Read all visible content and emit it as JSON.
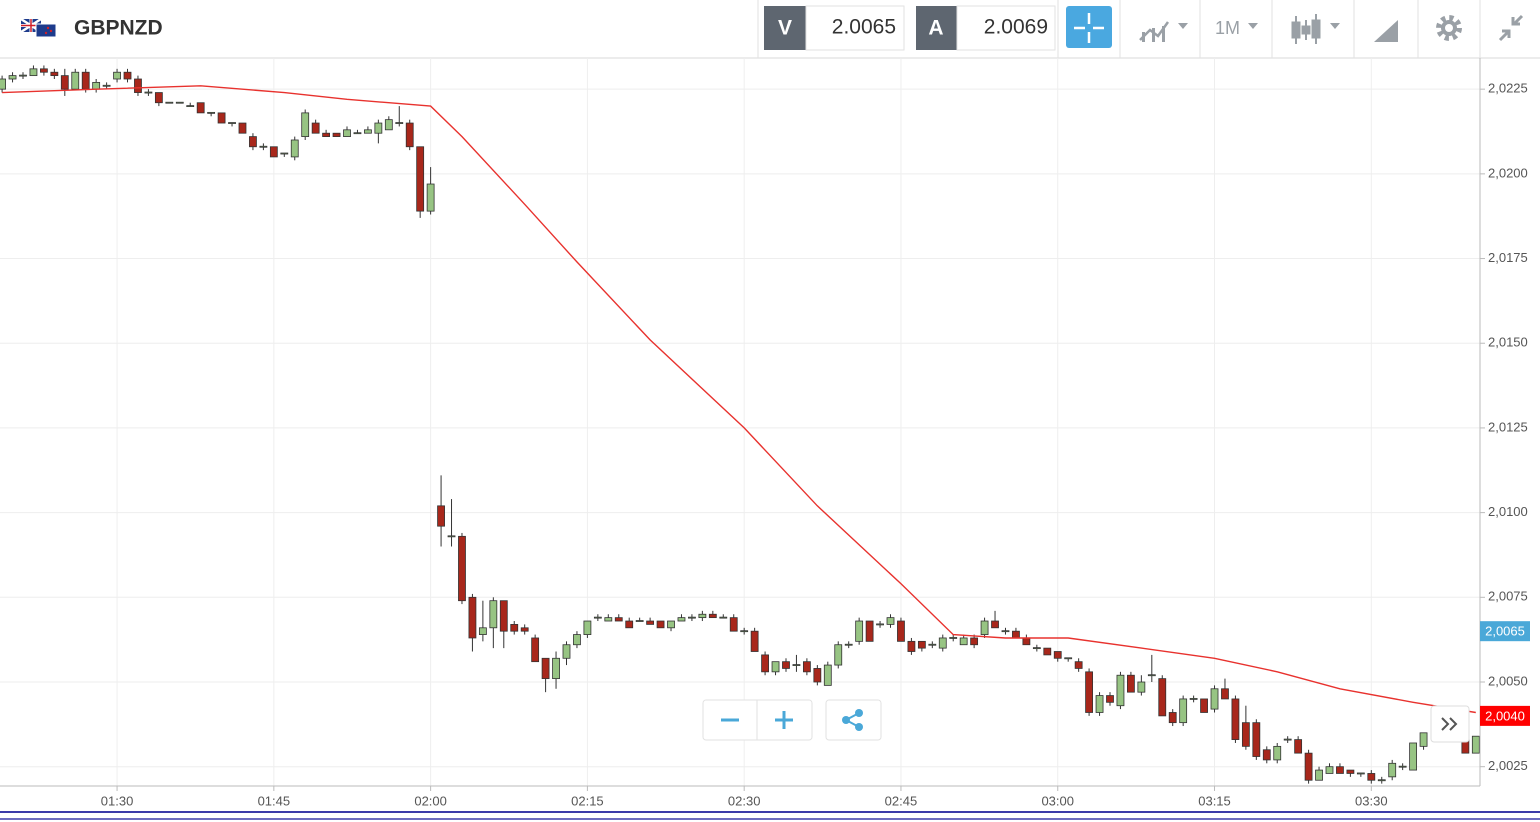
{
  "header": {
    "symbol": "GBPNZD",
    "bid_label": "V",
    "bid": "2.0065",
    "ask_label": "A",
    "ask": "2.0069",
    "interval": "1M"
  },
  "chart_data": {
    "type": "candlestick",
    "up_color": "#97c483",
    "down_color": "#a8271b",
    "ma_color": "#e8322e",
    "grid": true,
    "xlim": [
      78.8,
      220.4
    ],
    "ylim": [
      2.00193,
      2.02342
    ],
    "xticks": [
      {
        "value": 90,
        "label": "01:30"
      },
      {
        "value": 105,
        "label": "01:45"
      },
      {
        "value": 120,
        "label": "02:00"
      },
      {
        "value": 135,
        "label": "02:15"
      },
      {
        "value": 150,
        "label": "02:30"
      },
      {
        "value": 165,
        "label": "02:45"
      },
      {
        "value": 180,
        "label": "03:00"
      },
      {
        "value": 195,
        "label": "03:15"
      },
      {
        "value": 210,
        "label": "03:30"
      }
    ],
    "yticks": [
      {
        "value": 2.0225,
        "label": "2,0225"
      },
      {
        "value": 2.02,
        "label": "2,0200"
      },
      {
        "value": 2.0175,
        "label": "2,0175"
      },
      {
        "value": 2.015,
        "label": "2,0150"
      },
      {
        "value": 2.0125,
        "label": "2,0125"
      },
      {
        "value": 2.01,
        "label": "2,0100"
      },
      {
        "value": 2.0075,
        "label": "2,0075"
      },
      {
        "value": 2.005,
        "label": "2,0050"
      },
      {
        "value": 2.0025,
        "label": "2,0025"
      }
    ],
    "x": [
      79,
      80,
      81,
      82,
      83,
      84,
      85,
      86,
      87,
      88,
      89,
      90,
      91,
      92,
      93,
      94,
      95,
      96,
      97,
      98,
      99,
      100,
      101,
      102,
      103,
      104,
      105,
      106,
      107,
      108,
      109,
      110,
      111,
      112,
      113,
      114,
      115,
      116,
      117,
      118,
      119,
      120,
      121,
      122,
      123,
      124,
      125,
      126,
      127,
      128,
      129,
      130,
      131,
      132,
      133,
      134,
      135,
      136,
      137,
      138,
      139,
      140,
      141,
      142,
      143,
      144,
      145,
      146,
      147,
      148,
      149,
      150,
      151,
      152,
      153,
      154,
      155,
      156,
      157,
      158,
      159,
      160,
      161,
      162,
      163,
      164,
      165,
      166,
      167,
      168,
      169,
      170,
      171,
      172,
      173,
      174,
      175,
      176,
      177,
      178,
      179,
      180,
      181,
      182,
      183,
      184,
      185,
      186,
      187,
      188,
      189,
      190,
      191,
      192,
      193,
      194,
      195,
      196,
      197,
      198,
      199,
      200,
      201,
      202,
      203,
      204,
      205,
      206,
      207,
      208,
      209,
      210,
      211,
      212,
      213,
      214,
      215,
      219,
      220
    ],
    "ohlc": [
      [
        2.0225,
        2.0229,
        2.0224,
        2.0228
      ],
      [
        2.0228,
        2.023,
        2.0227,
        2.0229
      ],
      [
        2.0229,
        2.023,
        2.0228,
        2.0229
      ],
      [
        2.0229,
        2.0232,
        2.0229,
        2.0231
      ],
      [
        2.0231,
        2.0232,
        2.0229,
        2.023
      ],
      [
        2.023,
        2.0231,
        2.0228,
        2.0229
      ],
      [
        2.0229,
        2.0231,
        2.0223,
        2.0225
      ],
      [
        2.0225,
        2.0231,
        2.0225,
        2.023
      ],
      [
        2.023,
        2.0231,
        2.0224,
        2.0225
      ],
      [
        2.0225,
        2.0228,
        2.0224,
        2.0227
      ],
      [
        2.0226,
        2.0227,
        2.0225,
        2.0226
      ],
      [
        2.0228,
        2.0231,
        2.0227,
        2.023
      ],
      [
        2.023,
        2.0231,
        2.0227,
        2.0228
      ],
      [
        2.0228,
        2.0229,
        2.0223,
        2.0224
      ],
      [
        2.0224,
        2.0225,
        2.0223,
        2.0224
      ],
      [
        2.0224,
        2.0224,
        2.022,
        2.0221
      ],
      [
        2.0221,
        2.0221,
        2.0221,
        2.0221
      ],
      [
        2.0221,
        2.0221,
        2.0221,
        2.0221
      ],
      [
        2.022,
        2.0221,
        2.022,
        2.022
      ],
      [
        2.0221,
        2.0221,
        2.0218,
        2.0218
      ],
      [
        2.0218,
        2.0218,
        2.0217,
        2.0218
      ],
      [
        2.0218,
        2.0218,
        2.0215,
        2.0215
      ],
      [
        2.0215,
        2.0215,
        2.0214,
        2.0215
      ],
      [
        2.0215,
        2.0215,
        2.0212,
        2.0212
      ],
      [
        2.0211,
        2.0212,
        2.0207,
        2.0208
      ],
      [
        2.0208,
        2.0209,
        2.0207,
        2.0208
      ],
      [
        2.0208,
        2.0208,
        2.0205,
        2.0205
      ],
      [
        2.0206,
        2.0206,
        2.0205,
        2.0206
      ],
      [
        2.0205,
        2.0211,
        2.0204,
        2.021
      ],
      [
        2.0211,
        2.0219,
        2.021,
        2.0218
      ],
      [
        2.0215,
        2.0216,
        2.0212,
        2.0212
      ],
      [
        2.0212,
        2.0213,
        2.0211,
        2.0211
      ],
      [
        2.0212,
        2.0212,
        2.0211,
        2.0211
      ],
      [
        2.0211,
        2.0214,
        2.0211,
        2.0213
      ],
      [
        2.0212,
        2.0213,
        2.0212,
        2.0212
      ],
      [
        2.0212,
        2.0214,
        2.0212,
        2.0213
      ],
      [
        2.0212,
        2.0216,
        2.0209,
        2.0215
      ],
      [
        2.0213,
        2.0217,
        2.0213,
        2.0216
      ],
      [
        2.0215,
        2.022,
        2.0214,
        2.0215
      ],
      [
        2.0215,
        2.0216,
        2.0207,
        2.0208
      ],
      [
        2.0208,
        2.0208,
        2.0187,
        2.0189
      ],
      [
        2.0189,
        2.0202,
        2.0188,
        2.0197
      ],
      [
        2.0102,
        2.0111,
        2.009,
        2.0096
      ],
      [
        2.0093,
        2.0104,
        2.009,
        2.0093
      ],
      [
        2.0093,
        2.0094,
        2.0073,
        2.0074
      ],
      [
        2.0075,
        2.0076,
        2.0059,
        2.0063
      ],
      [
        2.0064,
        2.0074,
        2.0062,
        2.0066
      ],
      [
        2.0066,
        2.0075,
        2.006,
        2.0074
      ],
      [
        2.0074,
        2.0074,
        2.006,
        2.0065
      ],
      [
        2.0067,
        2.0068,
        2.0064,
        2.0065
      ],
      [
        2.0066,
        2.0067,
        2.0064,
        2.0065
      ],
      [
        2.0063,
        2.0064,
        2.0056,
        2.0056
      ],
      [
        2.0057,
        2.0057,
        2.0047,
        2.0051
      ],
      [
        2.0051,
        2.0059,
        2.0048,
        2.0057
      ],
      [
        2.0057,
        2.0062,
        2.0055,
        2.0061
      ],
      [
        2.0061,
        2.0065,
        2.006,
        2.0064
      ],
      [
        2.0064,
        2.0068,
        2.0063,
        2.0068
      ],
      [
        2.0069,
        2.007,
        2.0068,
        2.0069
      ],
      [
        2.0068,
        2.007,
        2.0068,
        2.0069
      ],
      [
        2.0069,
        2.007,
        2.0068,
        2.0068
      ],
      [
        2.0068,
        2.0069,
        2.0066,
        2.0066
      ],
      [
        2.0068,
        2.0069,
        2.0068,
        2.0068
      ],
      [
        2.0068,
        2.0069,
        2.0067,
        2.0067
      ],
      [
        2.0068,
        2.0068,
        2.0066,
        2.0066
      ],
      [
        2.0066,
        2.0068,
        2.0065,
        2.0068
      ],
      [
        2.0068,
        2.007,
        2.0068,
        2.0069
      ],
      [
        2.0069,
        2.007,
        2.0068,
        2.0069
      ],
      [
        2.0069,
        2.0071,
        2.0068,
        2.007
      ],
      [
        2.007,
        2.0071,
        2.0069,
        2.0069
      ],
      [
        2.0069,
        2.007,
        2.0069,
        2.0069
      ],
      [
        2.0069,
        2.007,
        2.0065,
        2.0065
      ],
      [
        2.0065,
        2.0066,
        2.0064,
        2.0065
      ],
      [
        2.0065,
        2.0066,
        2.0059,
        2.0059
      ],
      [
        2.0058,
        2.0059,
        2.0052,
        2.0053
      ],
      [
        2.0053,
        2.0056,
        2.0052,
        2.0056
      ],
      [
        2.0056,
        2.0057,
        2.0053,
        2.0054
      ],
      [
        2.0055,
        2.0058,
        2.0053,
        2.0055
      ],
      [
        2.0056,
        2.0057,
        2.0052,
        2.0053
      ],
      [
        2.0054,
        2.0055,
        2.0049,
        2.005
      ],
      [
        2.0049,
        2.0056,
        2.0049,
        2.0055
      ],
      [
        2.0055,
        2.0062,
        2.0054,
        2.0061
      ],
      [
        2.0061,
        2.0062,
        2.006,
        2.0061
      ],
      [
        2.0062,
        2.0069,
        2.0061,
        2.0068
      ],
      [
        2.0068,
        2.0068,
        2.0062,
        2.0062
      ],
      [
        2.0067,
        2.0068,
        2.0066,
        2.0067
      ],
      [
        2.0067,
        2.007,
        2.0066,
        2.0069
      ],
      [
        2.0068,
        2.0069,
        2.0062,
        2.0062
      ],
      [
        2.0062,
        2.0063,
        2.0058,
        2.0059
      ],
      [
        2.0062,
        2.0062,
        2.0059,
        2.006
      ],
      [
        2.0061,
        2.0062,
        2.006,
        2.0061
      ],
      [
        2.006,
        2.0064,
        2.0059,
        2.0063
      ],
      [
        2.0063,
        2.0064,
        2.0062,
        2.0063
      ],
      [
        2.0061,
        2.0064,
        2.0061,
        2.0063
      ],
      [
        2.0063,
        2.0064,
        2.006,
        2.0061
      ],
      [
        2.0064,
        2.0069,
        2.0063,
        2.0068
      ],
      [
        2.0068,
        2.0071,
        2.0066,
        2.0066
      ],
      [
        2.0065,
        2.0066,
        2.0064,
        2.0065
      ],
      [
        2.0065,
        2.0066,
        2.0063,
        2.0063
      ],
      [
        2.0063,
        2.0064,
        2.0061,
        2.0061
      ],
      [
        2.006,
        2.0061,
        2.0059,
        2.006
      ],
      [
        2.006,
        2.006,
        2.0058,
        2.0058
      ],
      [
        2.0059,
        2.0059,
        2.0056,
        2.0057
      ],
      [
        2.0057,
        2.0057,
        2.0056,
        2.0057
      ],
      [
        2.0056,
        2.0057,
        2.0053,
        2.0054
      ],
      [
        2.0053,
        2.0054,
        2.004,
        2.0041
      ],
      [
        2.0041,
        2.0047,
        2.004,
        2.0046
      ],
      [
        2.0046,
        2.0047,
        2.0043,
        2.0044
      ],
      [
        2.0043,
        2.0053,
        2.0042,
        2.0052
      ],
      [
        2.0052,
        2.0053,
        2.0047,
        2.0047
      ],
      [
        2.0047,
        2.0052,
        2.0046,
        2.005
      ],
      [
        2.0052,
        2.0058,
        2.005,
        2.0052
      ],
      [
        2.0051,
        2.0052,
        2.004,
        2.004
      ],
      [
        2.0041,
        2.0042,
        2.0037,
        2.0038
      ],
      [
        2.0038,
        2.0046,
        2.0037,
        2.0045
      ],
      [
        2.0045,
        2.0046,
        2.0044,
        2.0045
      ],
      [
        2.0045,
        2.0045,
        2.0041,
        2.0041
      ],
      [
        2.0042,
        2.0049,
        2.0041,
        2.0048
      ],
      [
        2.0048,
        2.0051,
        2.0045,
        2.0045
      ],
      [
        2.0045,
        2.0046,
        2.0032,
        2.0033
      ],
      [
        2.0038,
        2.0043,
        2.003,
        2.0031
      ],
      [
        2.0038,
        2.0039,
        2.0027,
        2.0028
      ],
      [
        2.003,
        2.0031,
        2.0026,
        2.0027
      ],
      [
        2.0027,
        2.0032,
        2.0026,
        2.0031
      ],
      [
        2.0033,
        2.0034,
        2.0032,
        2.0033
      ],
      [
        2.0033,
        2.0034,
        2.0029,
        2.0029
      ],
      [
        2.0029,
        2.003,
        2.002,
        2.0021
      ],
      [
        2.0021,
        2.0025,
        2.0021,
        2.0024
      ],
      [
        2.0023,
        2.0026,
        2.0023,
        2.0025
      ],
      [
        2.0025,
        2.0026,
        2.0023,
        2.0023
      ],
      [
        2.0024,
        2.0024,
        2.0022,
        2.0023
      ],
      [
        2.0023,
        2.0023,
        2.0022,
        2.0023
      ],
      [
        2.0023,
        2.0024,
        2.002,
        2.0021
      ],
      [
        2.0021,
        2.0022,
        2.002,
        2.0021
      ],
      [
        2.0022,
        2.0027,
        2.0021,
        2.0026
      ],
      [
        2.0025,
        2.0026,
        2.0024,
        2.0025
      ],
      [
        2.0024,
        2.0032,
        2.0024,
        2.0032
      ],
      [
        2.0031,
        2.0035,
        2.003,
        2.0035
      ],
      [
        2.0033,
        2.0034,
        2.0029,
        2.0029
      ],
      [
        2.0029,
        2.0034,
        2.0029,
        2.0034
      ]
    ],
    "ma": {
      "x": [
        79,
        88,
        98,
        106,
        112,
        120,
        123,
        129,
        134,
        141,
        150,
        157,
        165,
        170,
        175,
        181,
        188,
        195,
        201,
        207,
        214,
        220
      ],
      "values": [
        2.0224,
        2.0225,
        2.0226,
        2.0224,
        2.0222,
        2.022,
        2.0211,
        2.0191,
        2.0174,
        2.0151,
        2.0125,
        2.0102,
        2.0079,
        2.0064,
        2.0063,
        2.0063,
        2.006,
        2.0057,
        2.0053,
        2.0048,
        2.0044,
        2.0041
      ]
    },
    "price_markers": [
      {
        "value": 2.0065,
        "label": "2,0065",
        "color": "#4aa8d8"
      },
      {
        "value": 2.004,
        "label": "2,0040",
        "color": "#ff0000"
      }
    ]
  }
}
